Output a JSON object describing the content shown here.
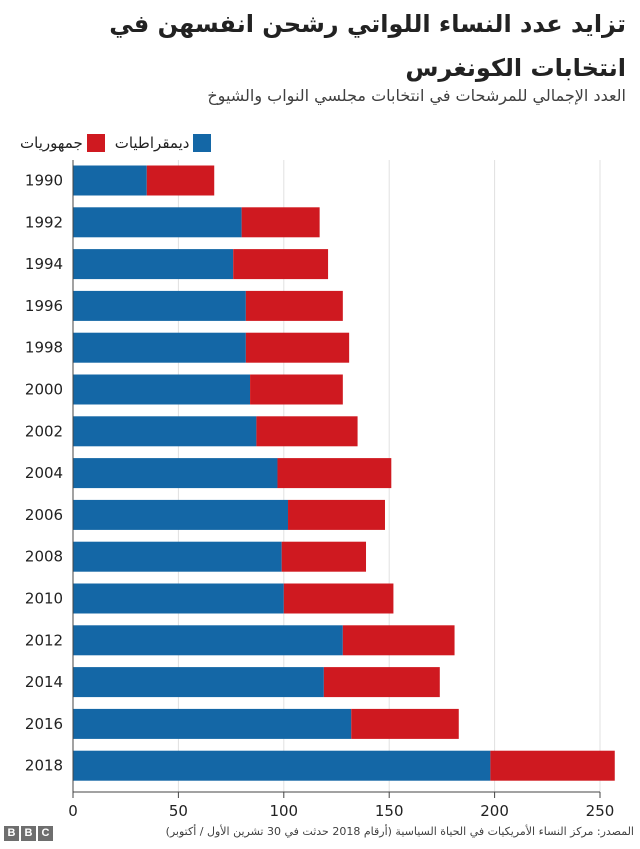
{
  "chart_data": {
    "type": "bar",
    "orientation": "horizontal",
    "stacked": true,
    "title": "تزايد عدد النساء اللواتي رشحن انفسهن في انتخابات الكونغرس",
    "subtitle": "العدد الإجمالي للمرشحات في انتخابات مجلسي النواب والشيوخ",
    "categories": [
      "1990",
      "1992",
      "1994",
      "1996",
      "1998",
      "2000",
      "2002",
      "2004",
      "2006",
      "2008",
      "2010",
      "2012",
      "2014",
      "2016",
      "2018"
    ],
    "series": [
      {
        "name": "ديمقراطيات",
        "color": "#1467a6",
        "values": [
          35,
          80,
          76,
          82,
          82,
          84,
          87,
          97,
          102,
          99,
          100,
          128,
          119,
          132,
          198
        ]
      },
      {
        "name": "جمهوريات",
        "color": "#cf1920",
        "values": [
          32,
          37,
          45,
          46,
          49,
          44,
          48,
          54,
          46,
          40,
          52,
          53,
          55,
          51,
          59
        ]
      }
    ],
    "xlim": [
      0,
      250
    ],
    "xticks": [
      0,
      50,
      100,
      150,
      200,
      250
    ],
    "grid": true,
    "legend": "top-left"
  },
  "footer": {
    "logo": "BBC",
    "source": "المصدر: مركز النساء الأمريكيات في الحياة السياسية (أرقام 2018 حدثت في 30 تشرين الأول / أكتوبر)"
  }
}
